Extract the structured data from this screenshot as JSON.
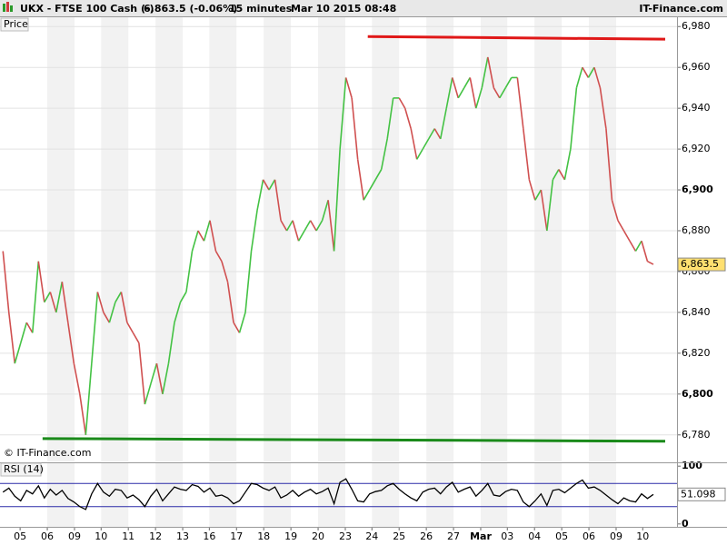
{
  "header": {
    "title": "UKX - FTSE 100 Cash (-)",
    "quote": "6,863.5 (-0.06%)",
    "interval": "15 minutes",
    "timestamp": "Mar 10 2015 08:48",
    "brand": "IT-Finance.com"
  },
  "chart_data": [
    {
      "type": "line",
      "title": "Price",
      "copyright": "© IT-Finance.com",
      "values": [
        6870,
        6840,
        6815,
        6825,
        6835,
        6830,
        6865,
        6845,
        6850,
        6840,
        6855,
        6835,
        6815,
        6800,
        6780,
        6815,
        6850,
        6840,
        6835,
        6845,
        6850,
        6835,
        6830,
        6825,
        6795,
        6805,
        6815,
        6800,
        6815,
        6835,
        6845,
        6850,
        6870,
        6880,
        6875,
        6885,
        6870,
        6865,
        6855,
        6835,
        6830,
        6840,
        6870,
        6890,
        6905,
        6900,
        6905,
        6885,
        6880,
        6885,
        6875,
        6880,
        6885,
        6880,
        6885,
        6895,
        6870,
        6920,
        6955,
        6945,
        6915,
        6895,
        6900,
        6905,
        6910,
        6925,
        6945,
        6945,
        6940,
        6930,
        6915,
        6920,
        6925,
        6930,
        6925,
        6940,
        6955,
        6945,
        6950,
        6955,
        6940,
        6950,
        6965,
        6950,
        6945,
        6950,
        6955,
        6955,
        6930,
        6905,
        6895,
        6900,
        6880,
        6905,
        6910,
        6905,
        6920,
        6950,
        6960,
        6955,
        6960,
        6950,
        6930,
        6895,
        6885,
        6880,
        6875,
        6870,
        6875,
        6865,
        6863.5
      ],
      "up_color": "#44c244",
      "down_color": "#d05050",
      "last_label": "6,863.5",
      "xlim": [
        -0.5,
        114
      ],
      "ylim": [
        6767,
        6985
      ],
      "yticks": [
        {
          "value": 6780,
          "label": "6,780"
        },
        {
          "value": 6800,
          "label": "6,800"
        },
        {
          "value": 6820,
          "label": "6,820"
        },
        {
          "value": 6840,
          "label": "6,840"
        },
        {
          "value": 6860,
          "label": "6,860"
        },
        {
          "value": 6880,
          "label": "6,880"
        },
        {
          "value": 6900,
          "label": "6,900"
        },
        {
          "value": 6920,
          "label": "6,920"
        },
        {
          "value": 6940,
          "label": "6,940"
        },
        {
          "value": 6960,
          "label": "6,960"
        },
        {
          "value": 6980,
          "label": "6,980"
        }
      ],
      "grid": true,
      "trendlines": [
        {
          "color": "#e01818",
          "x": [
            61.7,
            112
          ],
          "values": [
            6975.1,
            6973.8
          ]
        },
        {
          "color": "#1a8a1a",
          "x": [
            6.7,
            112
          ],
          "values": [
            6778.2,
            6776.9
          ]
        }
      ]
    },
    {
      "type": "line",
      "title": "RSI (14)",
      "color": "#000000",
      "values": [
        55,
        62,
        48,
        40,
        58,
        52,
        66,
        45,
        60,
        50,
        58,
        44,
        38,
        30,
        25,
        52,
        70,
        55,
        48,
        60,
        58,
        45,
        50,
        42,
        30,
        48,
        60,
        40,
        52,
        64,
        60,
        58,
        68,
        65,
        55,
        62,
        48,
        50,
        45,
        35,
        40,
        55,
        70,
        68,
        62,
        58,
        64,
        45,
        50,
        58,
        48,
        55,
        60,
        52,
        56,
        62,
        35,
        72,
        78,
        60,
        40,
        38,
        52,
        56,
        58,
        66,
        70,
        60,
        52,
        45,
        40,
        55,
        60,
        62,
        52,
        64,
        72,
        55,
        60,
        64,
        48,
        58,
        70,
        50,
        48,
        56,
        60,
        58,
        38,
        30,
        40,
        52,
        32,
        58,
        60,
        54,
        62,
        70,
        76,
        62,
        64,
        58,
        50,
        42,
        35,
        45,
        40,
        38,
        52,
        44,
        51.098
      ],
      "xlim": [
        -0.5,
        114
      ],
      "ylim": [
        -5,
        105
      ],
      "yticks": [
        0,
        100
      ],
      "levels": [
        30,
        70
      ],
      "level_color": "#2a2aa8",
      "xticks": [
        {
          "value": 2.9,
          "label": "05"
        },
        {
          "value": 7.5,
          "label": "06"
        },
        {
          "value": 12.1,
          "label": "09"
        },
        {
          "value": 16.6,
          "label": "10"
        },
        {
          "value": 21.2,
          "label": "11"
        },
        {
          "value": 25.8,
          "label": "12"
        },
        {
          "value": 30.4,
          "label": "13"
        },
        {
          "value": 34.9,
          "label": "16"
        },
        {
          "value": 39.5,
          "label": "17"
        },
        {
          "value": 44.1,
          "label": "18"
        },
        {
          "value": 48.7,
          "label": "19"
        },
        {
          "value": 53.3,
          "label": "20"
        },
        {
          "value": 57.9,
          "label": "23"
        },
        {
          "value": 62.4,
          "label": "24"
        },
        {
          "value": 67.0,
          "label": "25"
        },
        {
          "value": 71.6,
          "label": "26"
        },
        {
          "value": 76.2,
          "label": "27"
        },
        {
          "value": 80.8,
          "label": "Mar"
        },
        {
          "value": 85.3,
          "label": "03"
        },
        {
          "value": 89.9,
          "label": "04"
        },
        {
          "value": 94.5,
          "label": "05"
        },
        {
          "value": 99.1,
          "label": "06"
        },
        {
          "value": 103.7,
          "label": "09"
        },
        {
          "value": 108.2,
          "label": "10"
        }
      ]
    }
  ]
}
